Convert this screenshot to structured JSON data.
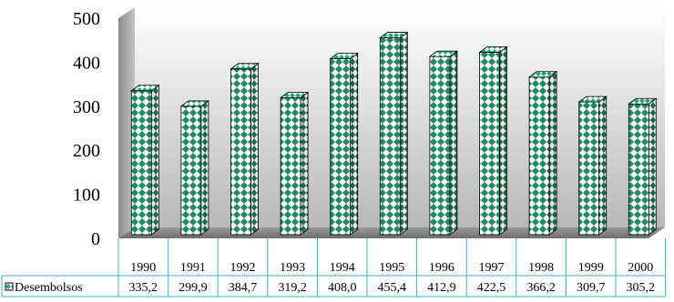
{
  "chart_data": {
    "type": "bar",
    "categories": [
      "1990",
      "1991",
      "1992",
      "1993",
      "1994",
      "1995",
      "1996",
      "1997",
      "1998",
      "1999",
      "2000"
    ],
    "series": [
      {
        "name": "Desembolsos",
        "values": [
          335.2,
          299.9,
          384.7,
          319.2,
          408.0,
          455.4,
          412.9,
          422.5,
          366.2,
          309.7,
          305.2
        ],
        "value_labels": [
          "335,2",
          "299,9",
          "384,7",
          "319,2",
          "408,0",
          "455,4",
          "412,9",
          "422,5",
          "366,2",
          "309,7",
          "305,2"
        ]
      }
    ],
    "yticks": [
      "0",
      "100",
      "200",
      "300",
      "400",
      "500"
    ],
    "ylim": [
      0,
      500
    ],
    "legend": "data-table-left",
    "grid": false,
    "colors": {
      "bar_pattern_dark": "#1e8a5e",
      "bar_pattern_light": "#ffffff",
      "bar_edge": "#000000",
      "wall_light": "#ffffff",
      "wall_dark": "#b8b8b8",
      "table_border": "#39b6c4"
    }
  }
}
